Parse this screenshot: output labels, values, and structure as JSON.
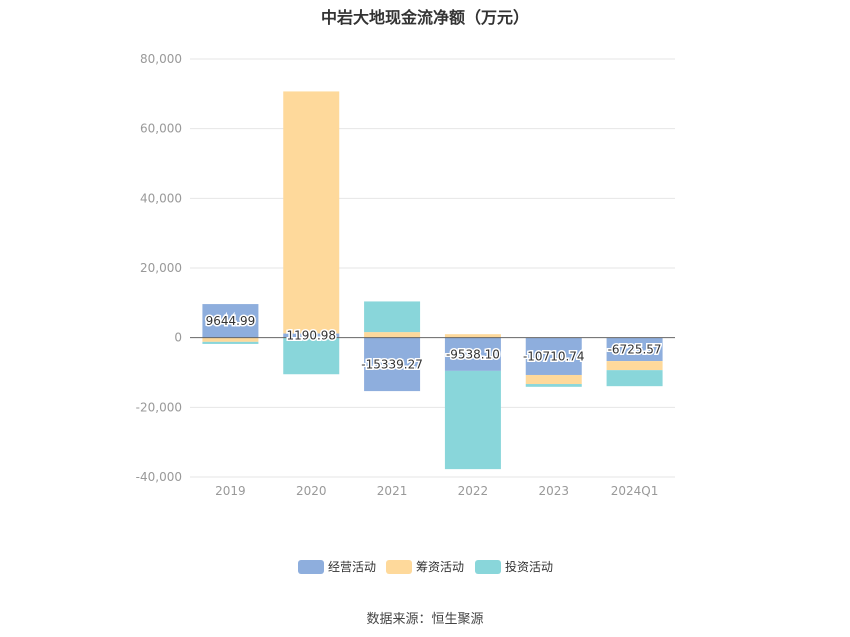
{
  "title": "中岩大地现金流净额（万元）",
  "source": "数据来源：恒生聚源",
  "chart_data": {
    "type": "bar",
    "stacked": true,
    "categories": [
      "2019",
      "2020",
      "2021",
      "2022",
      "2023",
      "2024Q1"
    ],
    "ylim": [
      -40000,
      80000
    ],
    "yticks": [
      -40000,
      -20000,
      0,
      20000,
      40000,
      60000,
      80000
    ],
    "ytick_labels": [
      "-40,000",
      "-20,000",
      "0",
      "20,000",
      "40,000",
      "60,000",
      "80,000"
    ],
    "grid": true,
    "legend_position": "bottom",
    "series": [
      {
        "name": "经营活动",
        "color": "#8eaedd",
        "values": [
          9644.99,
          1190.98,
          -15339.27,
          -9538.1,
          -10710.74,
          -6725.57
        ],
        "labels": [
          "9644.99",
          "1190.98",
          "-15339.27",
          "-9538.10",
          "-10710.74",
          "-6725.57"
        ]
      },
      {
        "name": "筹资活动",
        "color": "#fed99b",
        "values": [
          -1200,
          69500,
          1600,
          1000,
          -2600,
          -2600
        ]
      },
      {
        "name": "投资活动",
        "color": "#89d6da",
        "values": [
          -600,
          -10500,
          8800,
          -28200,
          -800,
          -4600
        ]
      }
    ]
  }
}
